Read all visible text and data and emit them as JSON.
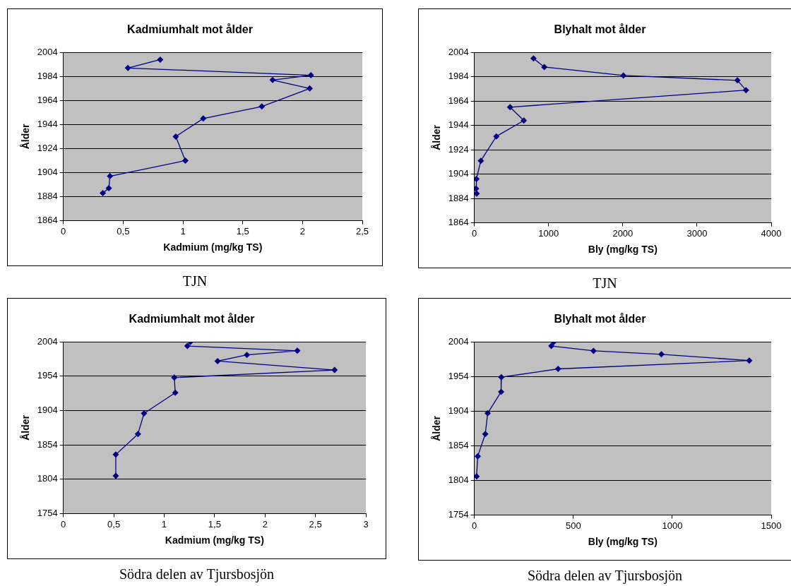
{
  "chart_data": [
    {
      "type": "line",
      "title": "Kadmiumhalt mot ålder",
      "xlabel": "Kadmium (mg/kg TS)",
      "ylabel": "Ålder",
      "annotations": [
        "TJN"
      ],
      "x": [
        0.81,
        0.54,
        2.07,
        1.75,
        2.06,
        1.66,
        1.17,
        0.94,
        1.02,
        0.39,
        0.38,
        0.33
      ],
      "values": [
        1998,
        1991,
        1985,
        1981,
        1974,
        1959,
        1949,
        1934,
        1914,
        1901,
        1891,
        1887
      ],
      "color": "#000080",
      "marker": "diamond",
      "line_style": "solid",
      "grid": "y",
      "legend": false,
      "xlim": [
        0,
        2.5
      ],
      "xticks": [
        0,
        {
          "value": 0.5,
          "label": "0,5"
        },
        1,
        {
          "value": 1.5,
          "label": "1,5"
        },
        2,
        {
          "value": 2.5,
          "label": "2,5"
        }
      ],
      "ylim": [
        1864,
        2004
      ],
      "yticks": [
        1864,
        1884,
        1904,
        1924,
        1944,
        1964,
        1984,
        2004
      ]
    },
    {
      "type": "line",
      "title": "Blyhalt mot ålder",
      "xlabel": "Bly (mg/kg TS)",
      "ylabel": "Ålder",
      "annotations": [
        "TJN"
      ],
      "x": [
        797,
        942,
        2008,
        3545,
        3660,
        481,
        666,
        296,
        87,
        27,
        22,
        30
      ],
      "values": [
        1999,
        1992,
        1985,
        1981,
        1973,
        1959,
        1948,
        1935,
        1915,
        1900,
        1892,
        1888
      ],
      "color": "#000080",
      "marker": "diamond",
      "line_style": "solid",
      "grid": "y",
      "legend": false,
      "xlim": [
        0,
        4000
      ],
      "xticks": [
        0,
        1000,
        2000,
        3000,
        4000
      ],
      "ylim": [
        1864,
        2004
      ],
      "yticks": [
        1864,
        1884,
        1904,
        1924,
        1944,
        1964,
        1984,
        2004
      ]
    },
    {
      "type": "line",
      "title": "Kadmiumhalt mot ålder",
      "xlabel": "Kadmium (mg/kg TS)",
      "ylabel": "Ålder",
      "annotations": [
        "Södra delen av Tjursbosjön"
      ],
      "x": [
        1.26,
        1.23,
        2.32,
        1.82,
        1.53,
        2.69,
        1.1,
        1.11,
        0.8,
        0.74,
        0.52,
        0.52
      ],
      "values": [
        2004,
        1998,
        1991,
        1985,
        1976,
        1963,
        1952,
        1930,
        1900,
        1870,
        1840,
        1809
      ],
      "color": "#000080",
      "marker": "diamond",
      "line_style": "solid",
      "grid": "y",
      "legend": false,
      "xlim": [
        0,
        3
      ],
      "xticks": [
        0,
        {
          "value": 0.5,
          "label": "0,5"
        },
        1,
        {
          "value": 1.5,
          "label": "1,5"
        },
        2,
        {
          "value": 2.5,
          "label": "2,5"
        },
        3
      ],
      "ylim": [
        1754,
        2004
      ],
      "yticks": [
        1754,
        1804,
        1854,
        1904,
        1954,
        2004
      ]
    },
    {
      "type": "line",
      "title": "Blyhalt mot ålder",
      "xlabel": "Bly (mg/kg TS)",
      "ylabel": "Ålder",
      "annotations": [
        "Södra delen av Tjursbosjön"
      ],
      "x": [
        401,
        389,
        602,
        945,
        1389,
        423,
        136,
        135,
        67,
        55,
        17,
        11
      ],
      "values": [
        2004,
        1998,
        1991,
        1986,
        1977,
        1965,
        1953,
        1932,
        1901,
        1871,
        1839,
        1810
      ],
      "color": "#000080",
      "marker": "diamond",
      "line_style": "solid",
      "grid": "y",
      "legend": false,
      "xlim": [
        0,
        1500
      ],
      "xticks": [
        0,
        500,
        1000,
        1500
      ],
      "ylim": [
        1754,
        2004
      ],
      "yticks": [
        1754,
        1804,
        1854,
        1904,
        1954,
        2004
      ]
    }
  ]
}
